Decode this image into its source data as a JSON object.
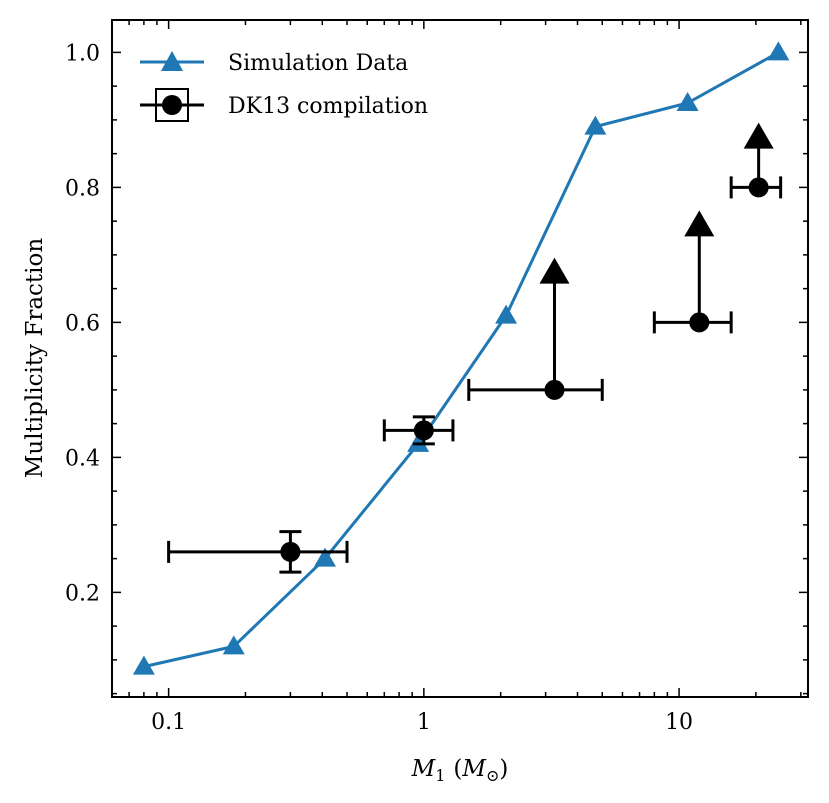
{
  "chart_data": {
    "type": "line",
    "xscale": "log",
    "xlim": [
      0.06,
      32
    ],
    "ylim": [
      0.045,
      1.048
    ],
    "xlabel_symbol": "M",
    "xlabel_subscript": "1",
    "xlabel_unit_open": "(",
    "xlabel_unit_symbol": "M",
    "xlabel_unit_sub": "⊙",
    "xlabel_unit_close": ")",
    "ylabel": "Multiplicity Fraction",
    "x_ticks": [
      {
        "value": 0.1,
        "label": "0.1"
      },
      {
        "value": 1,
        "label": "1"
      },
      {
        "value": 10,
        "label": "10"
      }
    ],
    "y_ticks": [
      {
        "value": 0.2,
        "label": "0.2"
      },
      {
        "value": 0.4,
        "label": "0.4"
      },
      {
        "value": 0.6,
        "label": "0.6"
      },
      {
        "value": 0.8,
        "label": "0.8"
      },
      {
        "value": 1.0,
        "label": "1.0"
      }
    ],
    "grid": false,
    "legend_position": "top-left",
    "series": [
      {
        "name": "Simulation Data",
        "marker": "triangle",
        "color": "#1f77b4",
        "points": [
          {
            "x": 0.08,
            "y": 0.09
          },
          {
            "x": 0.18,
            "y": 0.12
          },
          {
            "x": 0.41,
            "y": 0.25
          },
          {
            "x": 0.95,
            "y": 0.42
          },
          {
            "x": 2.1,
            "y": 0.61
          },
          {
            "x": 4.7,
            "y": 0.89
          },
          {
            "x": 10.8,
            "y": 0.925
          },
          {
            "x": 24.5,
            "y": 1.0
          }
        ]
      },
      {
        "name": "DK13 compilation",
        "marker": "circle",
        "color": "#000000",
        "points": [
          {
            "x": 0.3,
            "y": 0.26,
            "xmin": 0.1,
            "xmax": 0.5,
            "yerr": 0.03,
            "lower_limit": false
          },
          {
            "x": 1.0,
            "y": 0.44,
            "xmin": 0.7,
            "xmax": 1.3,
            "yerr": 0.02,
            "lower_limit": false
          },
          {
            "x": 3.25,
            "y": 0.5,
            "xmin": 1.5,
            "xmax": 5.0,
            "yerr": 0,
            "lower_limit": true,
            "limit_to": 0.69
          },
          {
            "x": 12.0,
            "y": 0.6,
            "xmin": 8.0,
            "xmax": 16.0,
            "yerr": 0,
            "lower_limit": true,
            "limit_to": 0.76
          },
          {
            "x": 20.5,
            "y": 0.8,
            "xmin": 16.0,
            "xmax": 25.0,
            "yerr": 0,
            "lower_limit": true,
            "limit_to": 0.89
          }
        ]
      }
    ]
  }
}
